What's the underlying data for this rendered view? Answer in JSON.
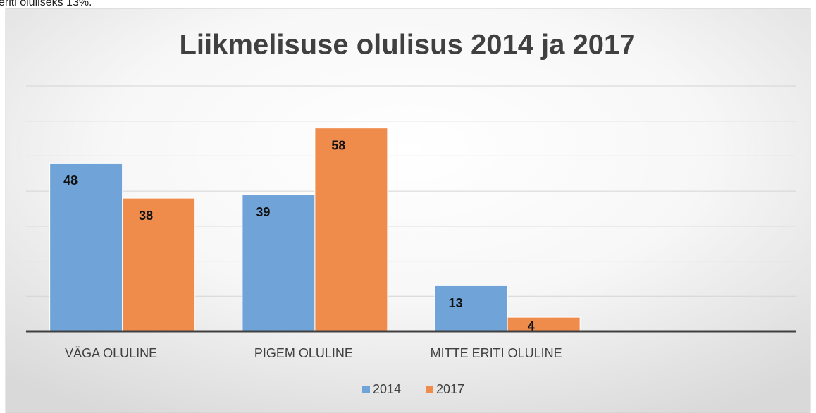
{
  "caption": "eriti oluliseks 13%.",
  "chart_data": {
    "type": "bar",
    "title": "Liikmelisuse olulisus 2014 ja 2017",
    "categories": [
      "VÄGA OLULINE",
      "PIGEM OLULINE",
      "MITTE ERITI OLULINE",
      null
    ],
    "series": [
      {
        "name": "2014",
        "color": "#70a4d8",
        "values": [
          48,
          39,
          13,
          null
        ]
      },
      {
        "name": "2017",
        "color": "#ef8c4c",
        "values": [
          38,
          58,
          4,
          null
        ]
      }
    ],
    "ylim": [
      0,
      70
    ],
    "yticks": [
      0,
      10,
      20,
      30,
      40,
      50,
      60,
      70
    ],
    "grid": true,
    "legend": "bottom"
  }
}
